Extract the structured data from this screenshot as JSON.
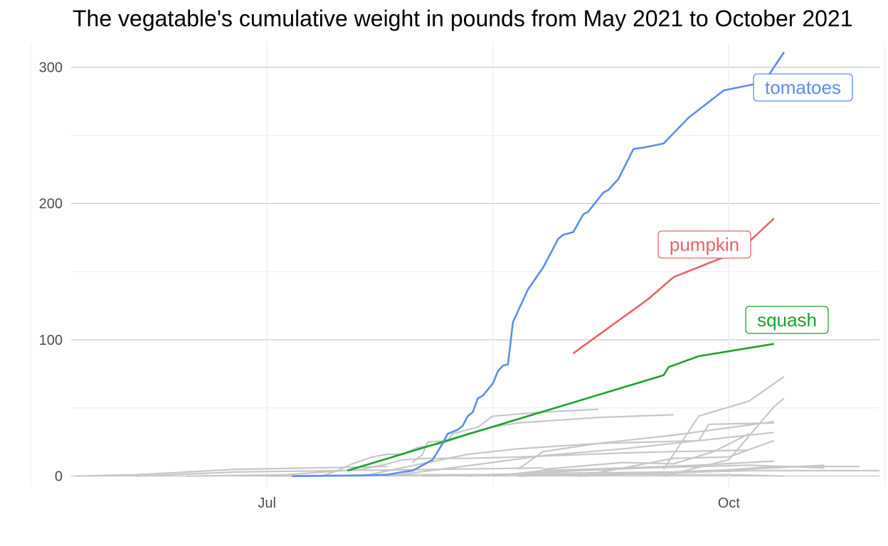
{
  "chart_data": {
    "type": "line",
    "title": "The vegatable's cumulative weight in pounds from May 2021 to October 2021",
    "xlabel": "",
    "ylabel": "",
    "x_axis": {
      "scale": "date",
      "range": [
        "2021-05-23",
        "2021-10-31"
      ],
      "ticks": [
        "Jul",
        "Oct"
      ],
      "tick_dates": [
        "2021-07-01",
        "2021-10-01"
      ],
      "minor_grid_dates": [
        "2021-05-15",
        "2021-08-15",
        "2021-11-01"
      ]
    },
    "y_axis": {
      "range": [
        -8,
        318
      ],
      "ticks": [
        0,
        100,
        200,
        300
      ],
      "minor_ticks": [
        50,
        150,
        250
      ]
    },
    "grid": true,
    "highlighted_series": [
      {
        "name": "tomatoes",
        "color": "#5b8def",
        "points": [
          [
            "2021-07-06",
            0
          ],
          [
            "2021-07-20",
            0.5
          ],
          [
            "2021-07-25",
            1
          ],
          [
            "2021-07-28",
            3
          ],
          [
            "2021-07-30",
            4
          ],
          [
            "2021-08-01",
            8
          ],
          [
            "2021-08-03",
            12
          ],
          [
            "2021-08-04",
            18
          ],
          [
            "2021-08-05",
            24
          ],
          [
            "2021-08-06",
            31
          ],
          [
            "2021-08-08",
            34
          ],
          [
            "2021-08-09",
            37
          ],
          [
            "2021-08-10",
            44
          ],
          [
            "2021-08-11",
            47
          ],
          [
            "2021-08-12",
            57
          ],
          [
            "2021-08-13",
            59
          ],
          [
            "2021-08-15",
            68
          ],
          [
            "2021-08-16",
            77
          ],
          [
            "2021-08-17",
            81
          ],
          [
            "2021-08-18",
            82
          ],
          [
            "2021-08-19",
            113
          ],
          [
            "2021-08-22",
            137
          ],
          [
            "2021-08-25",
            153
          ],
          [
            "2021-08-28",
            174
          ],
          [
            "2021-08-29",
            177
          ],
          [
            "2021-08-31",
            179
          ],
          [
            "2021-09-02",
            192
          ],
          [
            "2021-09-03",
            194
          ],
          [
            "2021-09-06",
            208
          ],
          [
            "2021-09-07",
            210
          ],
          [
            "2021-09-09",
            218
          ],
          [
            "2021-09-12",
            240
          ],
          [
            "2021-09-14",
            241
          ],
          [
            "2021-09-18",
            244
          ],
          [
            "2021-09-23",
            263
          ],
          [
            "2021-09-30",
            283
          ],
          [
            "2021-10-08",
            289
          ],
          [
            "2021-10-10",
            300
          ],
          [
            "2021-10-12",
            311
          ]
        ]
      },
      {
        "name": "pumpkin",
        "color": "#e76365",
        "points": [
          [
            "2021-08-31",
            90
          ],
          [
            "2021-09-15",
            130
          ],
          [
            "2021-09-20",
            146
          ],
          [
            "2021-10-03",
            165
          ],
          [
            "2021-10-10",
            189
          ]
        ]
      },
      {
        "name": "squash",
        "color": "#1aa22d",
        "points": [
          [
            "2021-07-17",
            4
          ],
          [
            "2021-09-18",
            74
          ],
          [
            "2021-09-19",
            80
          ],
          [
            "2021-09-25",
            88
          ],
          [
            "2021-10-10",
            97
          ]
        ]
      }
    ],
    "background_series_color": "#c7c7c7",
    "background_series": [
      [
        [
          "2021-05-24",
          0
        ],
        [
          "2021-06-05",
          1
        ],
        [
          "2021-06-15",
          3
        ],
        [
          "2021-06-25",
          5
        ],
        [
          "2021-07-10",
          6
        ],
        [
          "2021-07-25",
          7
        ]
      ],
      [
        [
          "2021-06-05",
          0
        ],
        [
          "2021-06-25",
          3
        ],
        [
          "2021-07-15",
          4
        ],
        [
          "2021-08-05",
          5
        ],
        [
          "2021-08-25",
          6
        ]
      ],
      [
        [
          "2021-06-15",
          0
        ],
        [
          "2021-07-05",
          1
        ],
        [
          "2021-07-20",
          5
        ],
        [
          "2021-07-25",
          9
        ],
        [
          "2021-07-28",
          12
        ],
        [
          "2021-08-02",
          13
        ],
        [
          "2021-08-10",
          13
        ],
        [
          "2021-08-20",
          14
        ],
        [
          "2021-09-10",
          17
        ],
        [
          "2021-09-20",
          18
        ],
        [
          "2021-10-05",
          19
        ]
      ],
      [
        [
          "2021-07-12",
          0
        ],
        [
          "2021-07-15",
          4
        ],
        [
          "2021-07-18",
          9
        ],
        [
          "2021-07-22",
          14
        ],
        [
          "2021-07-25",
          16
        ],
        [
          "2021-07-28",
          16
        ],
        [
          "2021-07-31",
          21
        ],
        [
          "2021-08-05",
          24
        ],
        [
          "2021-08-10",
          31
        ],
        [
          "2021-08-15",
          36
        ],
        [
          "2021-08-20",
          39
        ],
        [
          "2021-09-05",
          43
        ],
        [
          "2021-09-20",
          45
        ]
      ],
      [
        [
          "2021-07-30",
          10
        ],
        [
          "2021-08-01",
          16
        ],
        [
          "2021-08-02",
          25
        ],
        [
          "2021-08-06",
          26
        ],
        [
          "2021-08-07",
          31
        ],
        [
          "2021-08-10",
          34
        ],
        [
          "2021-08-12",
          36
        ],
        [
          "2021-08-15",
          44
        ],
        [
          "2021-08-25",
          47
        ],
        [
          "2021-09-05",
          49
        ]
      ],
      [
        [
          "2021-07-20",
          0
        ],
        [
          "2021-08-10",
          16
        ],
        [
          "2021-08-20",
          20
        ],
        [
          "2021-09-05",
          24
        ],
        [
          "2021-09-20",
          30
        ],
        [
          "2021-09-30",
          35
        ],
        [
          "2021-10-10",
          40
        ]
      ],
      [
        [
          "2021-07-25",
          0
        ],
        [
          "2021-08-15",
          10
        ],
        [
          "2021-08-25",
          15
        ],
        [
          "2021-09-10",
          20
        ],
        [
          "2021-09-25",
          26
        ],
        [
          "2021-10-10",
          32
        ]
      ],
      [
        [
          "2021-08-15",
          0
        ],
        [
          "2021-08-25",
          4
        ],
        [
          "2021-09-10",
          6
        ],
        [
          "2021-09-25",
          8
        ],
        [
          "2021-10-10",
          11
        ]
      ],
      [
        [
          "2021-08-20",
          5
        ],
        [
          "2021-08-25",
          18
        ],
        [
          "2021-09-05",
          24
        ],
        [
          "2021-09-25",
          26
        ],
        [
          "2021-09-27",
          38
        ],
        [
          "2021-10-10",
          39
        ]
      ],
      [
        [
          "2021-08-25",
          5
        ],
        [
          "2021-09-10",
          10
        ],
        [
          "2021-09-20",
          9
        ],
        [
          "2021-09-28",
          18
        ],
        [
          "2021-10-05",
          31
        ]
      ],
      [
        [
          "2021-09-01",
          0
        ],
        [
          "2021-09-10",
          6
        ],
        [
          "2021-09-20",
          13
        ],
        [
          "2021-10-01",
          14
        ],
        [
          "2021-10-10",
          26
        ]
      ],
      [
        [
          "2021-09-18",
          0
        ],
        [
          "2021-10-01",
          12
        ],
        [
          "2021-10-10",
          51
        ],
        [
          "2021-10-12",
          57
        ]
      ],
      [
        [
          "2021-09-18",
          5
        ],
        [
          "2021-09-25",
          44
        ],
        [
          "2021-10-05",
          55
        ],
        [
          "2021-10-12",
          73
        ]
      ],
      [
        [
          "2021-08-01",
          0
        ],
        [
          "2021-08-25",
          2
        ],
        [
          "2021-09-20",
          3
        ],
        [
          "2021-10-10",
          6
        ],
        [
          "2021-10-20",
          8
        ]
      ],
      [
        [
          "2021-08-10",
          0
        ],
        [
          "2021-09-01",
          4
        ],
        [
          "2021-09-15",
          6
        ],
        [
          "2021-10-05",
          8
        ],
        [
          "2021-10-20",
          6
        ]
      ],
      [
        [
          "2021-08-20",
          0
        ],
        [
          "2021-09-15",
          2
        ],
        [
          "2021-10-05",
          4
        ],
        [
          "2021-10-31",
          4
        ]
      ],
      [
        [
          "2021-09-01",
          0
        ],
        [
          "2021-09-25",
          3
        ],
        [
          "2021-10-10",
          7
        ],
        [
          "2021-10-27",
          7
        ]
      ],
      [
        [
          "2021-07-01",
          0
        ],
        [
          "2021-08-01",
          1
        ],
        [
          "2021-09-01",
          1
        ],
        [
          "2021-10-01",
          1
        ],
        [
          "2021-10-12",
          0
        ]
      ]
    ]
  }
}
